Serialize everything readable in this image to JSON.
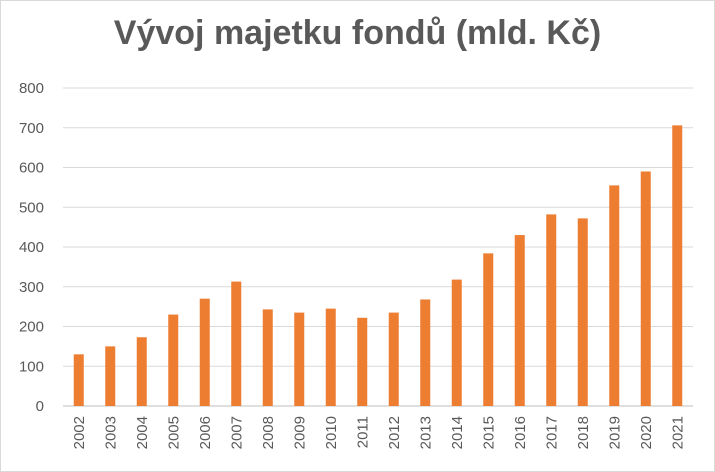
{
  "chart_data": {
    "type": "bar",
    "title": "Vývoj majetku fondů (mld. Kč)",
    "xlabel": "",
    "ylabel": "",
    "categories": [
      "2002",
      "2003",
      "2004",
      "2005",
      "2006",
      "2007",
      "2008",
      "2009",
      "2010",
      "2011",
      "2012",
      "2013",
      "2014",
      "2015",
      "2016",
      "2017",
      "2018",
      "2019",
      "2020",
      "2021"
    ],
    "values": [
      130,
      150,
      173,
      230,
      270,
      313,
      243,
      235,
      245,
      222,
      235,
      268,
      318,
      384,
      430,
      482,
      472,
      555,
      590,
      706
    ],
    "yticks": [
      "0",
      "100",
      "200",
      "300",
      "400",
      "500",
      "600",
      "700",
      "800"
    ],
    "ylim": [
      0,
      800
    ],
    "grid": true,
    "legend": "none",
    "bar_color": "#ED7D31",
    "grid_color": "#D9D9D9",
    "text_color": "#595959"
  }
}
